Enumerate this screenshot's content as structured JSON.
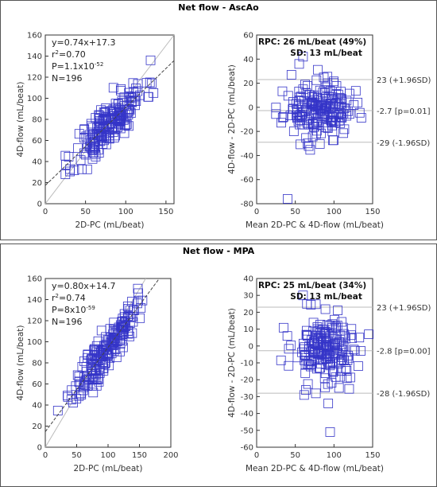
{
  "chart_data": [
    {
      "type": "scatter",
      "title": "Net flow - AscAo",
      "subplots": [
        {
          "kind": "regression",
          "xlabel": "2D-PC (mL/beat)",
          "ylabel": "4D-flow (mL/beat)",
          "xlim": [
            0,
            160
          ],
          "ylim": [
            0,
            160
          ],
          "xticks": [
            0,
            50,
            100,
            150
          ],
          "yticks": [
            0,
            20,
            40,
            60,
            80,
            100,
            120,
            140,
            160
          ],
          "annotations": [
            "y=0.74x+17.3",
            "r2=0.70",
            "P=1.1x10-52",
            "N=196"
          ],
          "equation_lines": [
            {
              "base": "y=0.74x+17.3"
            },
            {
              "base": "r",
              "sup": "2",
              "tail": "=0.70"
            },
            {
              "base": "P=1.1x10",
              "sup": "-52"
            },
            {
              "base": "N=196"
            }
          ],
          "regression": {
            "slope": 0.74,
            "intercept": 17.3
          },
          "n": 196,
          "cluster": {
            "x_range": [
              25,
              150
            ],
            "x_mean": 80,
            "x_sd": 22,
            "y_resid_sd": 11
          }
        },
        {
          "kind": "bland-altman",
          "xlabel": "Mean 2D-PC & 4D-flow (mL/beat)",
          "ylabel": "4D-flow - 2D-PC (mL/beat)",
          "xlim": [
            0,
            150
          ],
          "ylim": [
            -80,
            60
          ],
          "xticks": [
            0,
            50,
            100,
            150
          ],
          "yticks": [
            -80,
            -60,
            -40,
            -20,
            0,
            20,
            40,
            60
          ],
          "rpc_text": "RPC: 26 mL/beat (49%)",
          "sd_text": "SD: 13 mL/beat",
          "lines": [
            {
              "value": 23,
              "label": "23 (+1.96SD)"
            },
            {
              "value": -2.7,
              "label": "-2.7 [p=0.01]"
            },
            {
              "value": -29,
              "label": "-29 (-1.96SD)"
            }
          ],
          "n": 196,
          "cluster": {
            "x_range": [
              25,
              140
            ],
            "x_mean": 80,
            "x_sd": 22,
            "y_mean": -2.7,
            "y_sd": 11
          },
          "outliers": [
            [
              40,
              -76
            ],
            [
              55,
              36
            ],
            [
              60,
              42
            ],
            [
              45,
              27
            ]
          ]
        }
      ]
    },
    {
      "type": "scatter",
      "title": "Net flow - MPA",
      "subplots": [
        {
          "kind": "regression",
          "xlabel": "2D-PC (mL/beat)",
          "ylabel": "4D-flow (mL/beat)",
          "xlim": [
            0,
            200
          ],
          "ylim": [
            0,
            160
          ],
          "xticks": [
            0,
            50,
            100,
            150,
            200
          ],
          "yticks": [
            0,
            20,
            40,
            60,
            80,
            100,
            120,
            140,
            160
          ],
          "annotations": [
            "y=0.80x+14.7",
            "r2=0.74",
            "P=8x10-59",
            "N=196"
          ],
          "equation_lines": [
            {
              "base": "y=0.80x+14.7"
            },
            {
              "base": "r",
              "sup": "2",
              "tail": "=0.74"
            },
            {
              "base": "P=8x10",
              "sup": "-59"
            },
            {
              "base": "N=196"
            }
          ],
          "regression": {
            "slope": 0.8,
            "intercept": 14.7
          },
          "n": 196,
          "cluster": {
            "x_range": [
              20,
              160
            ],
            "x_mean": 95,
            "x_sd": 25,
            "y_resid_sd": 10
          }
        },
        {
          "kind": "bland-altman",
          "xlabel": "Mean 2D-PC & 4D-flow (mL/beat)",
          "ylabel": "4D-flow - 2D-PC (mL/beat)",
          "xlim": [
            0,
            150
          ],
          "ylim": [
            -60,
            40
          ],
          "xticks": [
            0,
            50,
            100,
            150
          ],
          "yticks": [
            -60,
            -50,
            -40,
            -30,
            -20,
            -10,
            0,
            10,
            20,
            30,
            40
          ],
          "rpc_text": "RPC: 25 mL/beat (34%)",
          "sd_text": "SD: 13 mL/beat",
          "lines": [
            {
              "value": 23,
              "label": "23 (+1.96SD)"
            },
            {
              "value": -2.8,
              "label": "-2.8 [p=0.00]"
            },
            {
              "value": -28,
              "label": "-28 (-1.96SD)"
            }
          ],
          "n": 196,
          "cluster": {
            "x_range": [
              25,
              145
            ],
            "x_mean": 90,
            "x_sd": 22,
            "y_mean": -2.8,
            "y_sd": 11
          },
          "outliers": [
            [
              95,
              -51
            ],
            [
              60,
              30
            ],
            [
              65,
              25
            ]
          ]
        }
      ]
    }
  ],
  "colors": {
    "marker": "#3535c8",
    "axis": "#333333",
    "refline": "#bbbbbb"
  }
}
